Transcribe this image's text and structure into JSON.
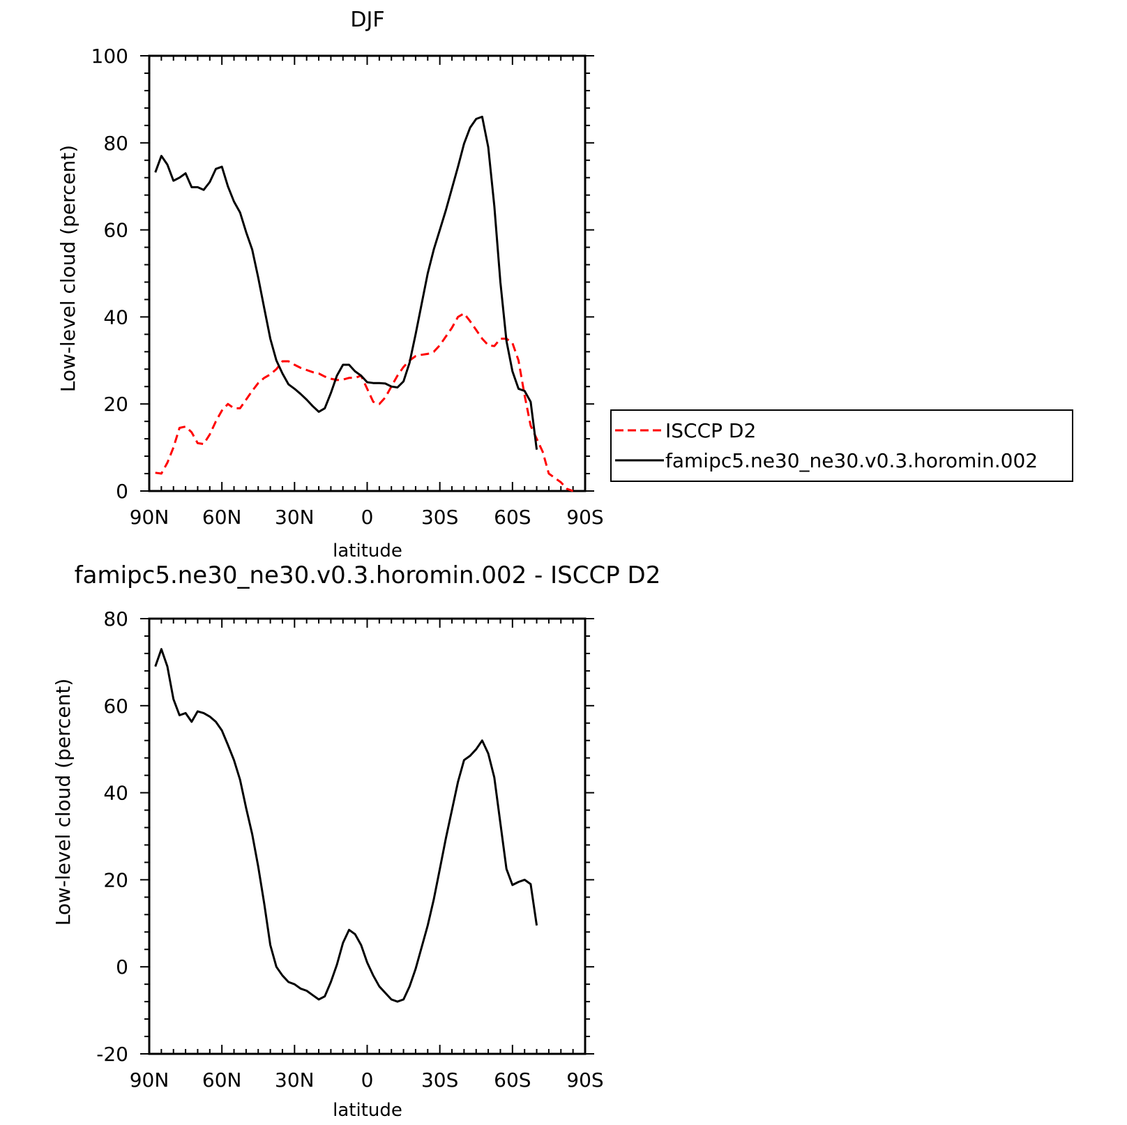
{
  "chart_data": [
    {
      "type": "line",
      "title": "DJF",
      "xlabel": "latitude",
      "ylabel": "Low-level cloud (percent)",
      "xlim": [
        90,
        -90
      ],
      "ylim": [
        0,
        100
      ],
      "xticks": [
        {
          "value": 90,
          "label": "90N"
        },
        {
          "value": 60,
          "label": "60N"
        },
        {
          "value": 30,
          "label": "30N"
        },
        {
          "value": 0,
          "label": "0"
        },
        {
          "value": -30,
          "label": "30S"
        },
        {
          "value": -60,
          "label": "60S"
        },
        {
          "value": -90,
          "label": "90S"
        }
      ],
      "yticks": [
        {
          "value": 0,
          "label": "0"
        },
        {
          "value": 20,
          "label": "20"
        },
        {
          "value": 40,
          "label": "40"
        },
        {
          "value": 60,
          "label": "60"
        },
        {
          "value": 80,
          "label": "80"
        },
        {
          "value": 100,
          "label": "100"
        }
      ],
      "grid": false,
      "legend_position": "right, outside plot",
      "series": [
        {
          "name": "ISCCP D2",
          "color": "#ff0000",
          "style": "dashed",
          "points": [
            [
              87.5,
              4.2
            ],
            [
              85,
              4.0
            ],
            [
              82.5,
              6.5
            ],
            [
              80,
              10.0
            ],
            [
              77.5,
              14.5
            ],
            [
              75,
              14.8
            ],
            [
              72.5,
              13.5
            ],
            [
              70,
              11.0
            ],
            [
              67.5,
              10.8
            ],
            [
              65,
              13.0
            ],
            [
              62.5,
              16.0
            ],
            [
              60,
              18.5
            ],
            [
              57.5,
              20.0
            ],
            [
              55,
              19.0
            ],
            [
              52.5,
              19.0
            ],
            [
              50,
              21.0
            ],
            [
              47.5,
              23.0
            ],
            [
              45,
              24.8
            ],
            [
              42.5,
              26.0
            ],
            [
              40,
              26.8
            ],
            [
              37.5,
              28.0
            ],
            [
              35,
              29.8
            ],
            [
              32.5,
              29.8
            ],
            [
              30,
              29.0
            ],
            [
              27.5,
              28.3
            ],
            [
              25,
              27.8
            ],
            [
              22.5,
              27.3
            ],
            [
              20,
              27.0
            ],
            [
              17.5,
              26.3
            ],
            [
              15,
              25.8
            ],
            [
              12.5,
              25.5
            ],
            [
              10,
              25.6
            ],
            [
              7.5,
              26.0
            ],
            [
              5,
              26.0
            ],
            [
              2.5,
              26.5
            ],
            [
              0,
              23.5
            ],
            [
              -2.5,
              20.5
            ],
            [
              -5,
              20.0
            ],
            [
              -7.5,
              21.5
            ],
            [
              -10,
              24.0
            ],
            [
              -12.5,
              26.5
            ],
            [
              -15,
              28.5
            ],
            [
              -17.5,
              30.0
            ],
            [
              -20,
              31.0
            ],
            [
              -22.5,
              31.3
            ],
            [
              -25,
              31.5
            ],
            [
              -27.5,
              32.0
            ],
            [
              -30,
              33.5
            ],
            [
              -32.5,
              35.5
            ],
            [
              -35,
              37.5
            ],
            [
              -37.5,
              40.0
            ],
            [
              -40,
              40.8
            ],
            [
              -42.5,
              39.0
            ],
            [
              -45,
              37.0
            ],
            [
              -47.5,
              35.0
            ],
            [
              -50,
              33.5
            ],
            [
              -52.5,
              33.3
            ],
            [
              -55,
              35.0
            ],
            [
              -57.5,
              35.0
            ],
            [
              -60,
              34.0
            ],
            [
              -62.5,
              30.0
            ],
            [
              -65,
              22.0
            ],
            [
              -67.5,
              15.0
            ],
            [
              -70,
              12.0
            ],
            [
              -72.5,
              9.0
            ],
            [
              -75,
              4.0
            ],
            [
              -77.5,
              3.0
            ],
            [
              -80,
              2.0
            ],
            [
              -82.5,
              0.5
            ],
            [
              -85,
              0.0
            ]
          ]
        },
        {
          "name": "famipc5.ne30_ne30.v0.3.horomin.002",
          "color": "#000000",
          "style": "solid",
          "points": [
            [
              87.5,
              73.2
            ],
            [
              85,
              77.0
            ],
            [
              82.5,
              75.0
            ],
            [
              80,
              71.3
            ],
            [
              77.5,
              72.0
            ],
            [
              75,
              73.0
            ],
            [
              72.5,
              69.8
            ],
            [
              70,
              69.8
            ],
            [
              67.5,
              69.2
            ],
            [
              65,
              71.0
            ],
            [
              62.5,
              74.0
            ],
            [
              60,
              74.5
            ],
            [
              57.5,
              70.0
            ],
            [
              55,
              66.5
            ],
            [
              52.5,
              64.0
            ],
            [
              50,
              59.5
            ],
            [
              47.5,
              55.5
            ],
            [
              45,
              49.0
            ],
            [
              42.5,
              42.0
            ],
            [
              40,
              35.0
            ],
            [
              37.5,
              30.0
            ],
            [
              35,
              27.0
            ],
            [
              32.5,
              24.5
            ],
            [
              30,
              23.5
            ],
            [
              27.5,
              22.3
            ],
            [
              25,
              21.0
            ],
            [
              22.5,
              19.5
            ],
            [
              20,
              18.2
            ],
            [
              17.5,
              19.0
            ],
            [
              15,
              22.5
            ],
            [
              12.5,
              26.5
            ],
            [
              10,
              29.0
            ],
            [
              7.5,
              29.0
            ],
            [
              5,
              27.5
            ],
            [
              2.5,
              26.5
            ],
            [
              0,
              25.0
            ],
            [
              -2.5,
              24.8
            ],
            [
              -5,
              24.8
            ],
            [
              -7.5,
              24.7
            ],
            [
              -10,
              24.0
            ],
            [
              -12.5,
              23.8
            ],
            [
              -15,
              25.2
            ],
            [
              -17.5,
              29.5
            ],
            [
              -20,
              36.0
            ],
            [
              -22.5,
              43.0
            ],
            [
              -25,
              50.0
            ],
            [
              -27.5,
              55.5
            ],
            [
              -30,
              60.0
            ],
            [
              -32.5,
              64.5
            ],
            [
              -35,
              69.5
            ],
            [
              -37.5,
              74.5
            ],
            [
              -40,
              79.8
            ],
            [
              -42.5,
              83.5
            ],
            [
              -45,
              85.5
            ],
            [
              -47.5,
              86.0
            ],
            [
              -50,
              79.0
            ],
            [
              -52.5,
              65.5
            ],
            [
              -55,
              48.0
            ],
            [
              -57.5,
              34.5
            ],
            [
              -60,
              27.5
            ],
            [
              -62.5,
              23.5
            ],
            [
              -65,
              23.0
            ],
            [
              -67.5,
              20.5
            ],
            [
              -70,
              9.5
            ]
          ]
        }
      ]
    },
    {
      "type": "line",
      "title": "famipc5.ne30_ne30.v0.3.horomin.002 - ISCCP D2",
      "xlabel": "latitude",
      "ylabel": "Low-level cloud (percent)",
      "xlim": [
        90,
        -90
      ],
      "ylim": [
        -20,
        80
      ],
      "xticks": [
        {
          "value": 90,
          "label": "90N"
        },
        {
          "value": 60,
          "label": "60N"
        },
        {
          "value": 30,
          "label": "30N"
        },
        {
          "value": 0,
          "label": "0"
        },
        {
          "value": -30,
          "label": "30S"
        },
        {
          "value": -60,
          "label": "60S"
        },
        {
          "value": -90,
          "label": "90S"
        }
      ],
      "yticks": [
        {
          "value": -20,
          "label": "-20"
        },
        {
          "value": 0,
          "label": "0"
        },
        {
          "value": 20,
          "label": "20"
        },
        {
          "value": 40,
          "label": "40"
        },
        {
          "value": 60,
          "label": "60"
        },
        {
          "value": 80,
          "label": "80"
        }
      ],
      "grid": false,
      "series": [
        {
          "color": "#000000",
          "style": "solid",
          "points": [
            [
              87.5,
              69.0
            ],
            [
              85,
              73.0
            ],
            [
              82.5,
              69.0
            ],
            [
              80,
              61.5
            ],
            [
              77.5,
              57.8
            ],
            [
              75,
              58.3
            ],
            [
              72.5,
              56.3
            ],
            [
              70,
              58.7
            ],
            [
              67.5,
              58.3
            ],
            [
              65,
              57.5
            ],
            [
              62.5,
              56.3
            ],
            [
              60,
              54.3
            ],
            [
              57.5,
              51.0
            ],
            [
              55,
              47.5
            ],
            [
              52.5,
              43.0
            ],
            [
              50,
              36.5
            ],
            [
              47.5,
              30.5
            ],
            [
              45,
              23.0
            ],
            [
              42.5,
              14.5
            ],
            [
              40,
              5.0
            ],
            [
              37.5,
              0.0
            ],
            [
              35,
              -2.0
            ],
            [
              32.5,
              -3.5
            ],
            [
              30,
              -4.0
            ],
            [
              27.5,
              -5.0
            ],
            [
              25,
              -5.5
            ],
            [
              22.5,
              -6.5
            ],
            [
              20,
              -7.5
            ],
            [
              17.5,
              -6.8
            ],
            [
              15,
              -3.5
            ],
            [
              12.5,
              0.5
            ],
            [
              10,
              5.5
            ],
            [
              7.5,
              8.5
            ],
            [
              5,
              7.5
            ],
            [
              2.5,
              5.0
            ],
            [
              0,
              1.0
            ],
            [
              -2.5,
              -2.0
            ],
            [
              -5,
              -4.5
            ],
            [
              -7.5,
              -6.0
            ],
            [
              -10,
              -7.5
            ],
            [
              -12.5,
              -8.0
            ],
            [
              -15,
              -7.5
            ],
            [
              -17.5,
              -4.5
            ],
            [
              -20,
              -0.5
            ],
            [
              -22.5,
              4.5
            ],
            [
              -25,
              9.5
            ],
            [
              -27.5,
              15.5
            ],
            [
              -30,
              22.5
            ],
            [
              -32.5,
              29.5
            ],
            [
              -35,
              36.0
            ],
            [
              -37.5,
              42.5
            ],
            [
              -40,
              47.5
            ],
            [
              -42.5,
              48.5
            ],
            [
              -45,
              50.0
            ],
            [
              -47.5,
              52.0
            ],
            [
              -50,
              49.0
            ],
            [
              -52.5,
              43.5
            ],
            [
              -55,
              33.0
            ],
            [
              -57.5,
              22.5
            ],
            [
              -60,
              18.8
            ],
            [
              -62.5,
              19.5
            ],
            [
              -65,
              20.0
            ],
            [
              -67.5,
              19.0
            ],
            [
              -70,
              9.5
            ]
          ]
        }
      ]
    }
  ]
}
